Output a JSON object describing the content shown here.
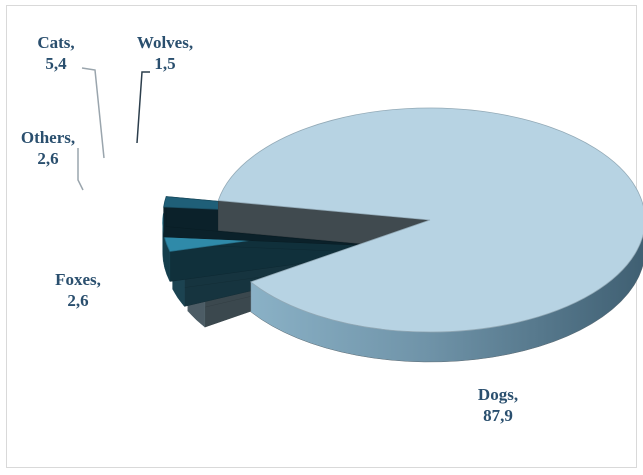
{
  "chart_data": {
    "type": "pie",
    "title": "",
    "legend": "none",
    "slices": [
      {
        "name": "Dogs",
        "label": "Dogs,",
        "value_text": "87,9",
        "value": 87.9,
        "color": "#b7d3e3",
        "explode": 0.0,
        "label_pos": "bottom-right"
      },
      {
        "name": "Foxes",
        "label": "Foxes,",
        "value_text": "2,6",
        "value": 2.6,
        "color": "#a8cde0",
        "explode": 0.35,
        "label_pos": "left"
      },
      {
        "name": "Others",
        "label": "Others,",
        "value_text": "2,6",
        "value": 2.6,
        "color": "#3f95b3",
        "explode": 0.35,
        "label_pos": "top-left"
      },
      {
        "name": "Cats",
        "label": "Cats,",
        "value_text": "5,4",
        "value": 5.4,
        "color": "#2f8aa9",
        "explode": 0.35,
        "label_pos": "top-left"
      },
      {
        "name": "Wolves",
        "label": "Wolves,",
        "value_text": "1,5",
        "value": 1.5,
        "color": "#1f5f78",
        "explode": 0.35,
        "label_pos": "top"
      }
    ]
  }
}
